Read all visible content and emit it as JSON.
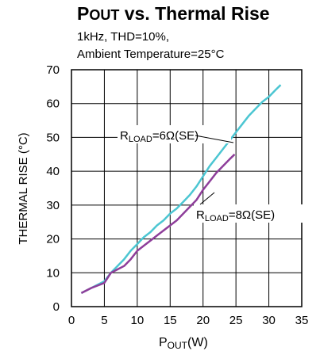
{
  "chart_data": {
    "type": "line",
    "title": {
      "main": "P",
      "sub": "OUT",
      "rest": " vs. Thermal Rise"
    },
    "subtitle_lines": [
      "1kHz, THD=10%,",
      "Ambient Temperature=25°C"
    ],
    "xlabel": {
      "main": "P",
      "sub": "OUT",
      "rest": "(W)"
    },
    "ylabel": "THERMAL RISE (°C)",
    "xlim": [
      0,
      35
    ],
    "ylim": [
      0,
      70
    ],
    "xticks": [
      "0",
      "5",
      "10",
      "15",
      "20",
      "25",
      "30",
      "35"
    ],
    "yticks": [
      "0",
      "10",
      "20",
      "30",
      "40",
      "50",
      "60",
      "70"
    ],
    "grid": true,
    "colors": {
      "series_6ohm": "#4cc6d2",
      "series_8ohm": "#8e3e9a",
      "grid": "#000000"
    },
    "series": [
      {
        "name": "RLOAD=6Ω(SE)",
        "label": {
          "main": "R",
          "sub": "LOAD",
          "rest": "=6Ω(SE)"
        },
        "x": [
          1.5,
          3,
          5,
          6,
          7,
          8,
          9,
          10,
          11,
          12,
          13,
          14,
          15,
          16,
          17,
          18,
          19,
          20,
          21,
          22,
          23,
          24,
          25,
          26,
          27,
          28,
          29,
          30,
          31,
          31.8
        ],
        "y": [
          4,
          5.5,
          7.5,
          10,
          12,
          14,
          16.5,
          18.5,
          20.5,
          22,
          24,
          25.5,
          27.5,
          29,
          31,
          33,
          35.5,
          38.5,
          41.5,
          44,
          46.5,
          49,
          51.5,
          54,
          56.5,
          58.5,
          60.5,
          62,
          64,
          65.5
        ]
      },
      {
        "name": "RLOAD=8Ω(SE)",
        "label": {
          "main": "R",
          "sub": "LOAD",
          "rest": "=8Ω(SE)"
        },
        "x": [
          1.5,
          3,
          5,
          6,
          7,
          8,
          9,
          10,
          11,
          12,
          13,
          14,
          15,
          16,
          17,
          18,
          19,
          20,
          21,
          22,
          23,
          24,
          24.8
        ],
        "y": [
          4,
          5.5,
          7,
          10,
          11,
          12,
          14,
          16.5,
          18,
          19.5,
          21,
          22.5,
          24,
          25.5,
          27.5,
          29.5,
          31.5,
          34.5,
          37,
          39.5,
          41.5,
          43.5,
          45
        ]
      }
    ]
  }
}
